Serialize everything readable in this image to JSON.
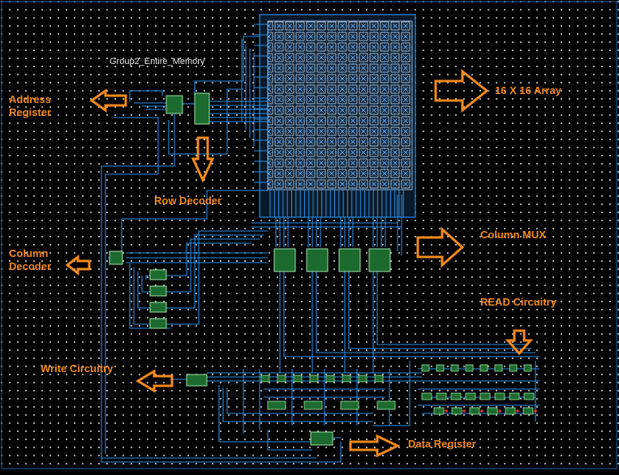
{
  "diagram": {
    "title": "Group2_Entire_Memory",
    "labels": {
      "address_register": "Address\nRegister",
      "array": "16 X 16 Array",
      "row_decoder": "Row Decoder",
      "column_decoder": "Column\nDecoder",
      "column_mux": "Column MUX",
      "read_circuitry": "READ Circuitry",
      "write_circuitry": "Write Circuitry",
      "data_register": "Data Register"
    },
    "colors": {
      "background": "#000000",
      "grid_dot": "#d8d8d8",
      "wire": "#2a8ee8",
      "block_fill": "#1d6a2f",
      "label": "#f28a1e",
      "title": "#e8e8e8"
    },
    "icons": [
      "arrow-right-icon",
      "arrow-left-icon",
      "arrow-down-icon"
    ]
  }
}
